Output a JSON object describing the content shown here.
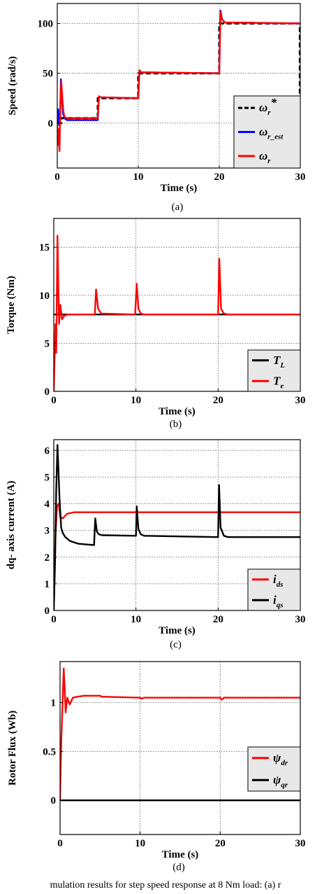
{
  "figure": {
    "caption": "mulation results for step speed response at 8 Nm load: (a) r",
    "line_colors": {
      "red": "#ff0000",
      "blue": "#0000ff",
      "black": "#000000"
    },
    "legend_background": "#e8e8e8"
  },
  "chart_data": [
    {
      "type": "line",
      "panel_label": "(a)",
      "xlabel": "Time (s)",
      "ylabel": "Speed (rad/s)",
      "xlim": [
        0,
        30
      ],
      "ylim": [
        -45,
        120
      ],
      "xticks": [
        0,
        10,
        20,
        30
      ],
      "yticks": [
        0,
        50,
        100
      ],
      "grid": "dotted major grid",
      "legend_position": "bottom-right",
      "series": [
        {
          "name": "ω_r*",
          "legend_main": "ω",
          "legend_sub": "r",
          "legend_sup": "*",
          "color": "#000000",
          "style": "dashed",
          "x": [
            0,
            0.5,
            0.5,
            5,
            5,
            10,
            10,
            20,
            20,
            29.95,
            29.95,
            30
          ],
          "y": [
            0,
            0,
            5,
            5,
            25,
            25,
            50,
            50,
            100,
            100,
            0,
            0
          ]
        },
        {
          "name": "ω_r_est",
          "legend_main": "ω",
          "legend_sub": "r_est",
          "legend_sup": "",
          "color": "#0000ff",
          "style": "solid",
          "x": [
            0,
            0.12,
            0.25,
            0.35,
            0.45,
            0.55,
            0.7,
            0.9,
            1.2,
            5,
            5.15,
            5.35,
            10,
            10.15,
            10.35,
            20,
            20.15,
            20.35,
            20.7,
            30
          ],
          "y": [
            0,
            14,
            -2,
            6,
            44,
            30,
            10,
            5,
            3,
            3,
            27,
            26,
            25,
            53,
            51,
            50,
            113,
            104,
            101,
            100
          ]
        },
        {
          "name": "ω_r",
          "legend_main": "ω",
          "legend_sub": "r",
          "legend_sup": "",
          "color": "#ff0000",
          "style": "solid",
          "x": [
            0,
            0.1,
            0.18,
            0.28,
            0.38,
            0.5,
            0.6,
            0.75,
            0.9,
            1.2,
            5,
            5.15,
            5.35,
            10,
            10.15,
            10.35,
            20,
            20.15,
            20.35,
            20.7,
            30
          ],
          "y": [
            0,
            -22,
            -6,
            -28,
            20,
            42,
            28,
            12,
            6,
            5,
            5,
            27,
            26,
            25,
            53,
            51,
            50,
            112,
            104,
            101,
            100
          ]
        }
      ]
    },
    {
      "type": "line",
      "panel_label": "(b)",
      "xlabel": "Time (s)",
      "ylabel": "Torque (Nm)",
      "xlim": [
        0,
        30
      ],
      "ylim": [
        0,
        18
      ],
      "xticks": [
        0,
        10,
        20,
        30
      ],
      "yticks": [
        0,
        5,
        10,
        15
      ],
      "grid": "dotted major grid",
      "legend_position": "bottom-right",
      "series": [
        {
          "name": "T_L",
          "legend_main": "T",
          "legend_sub": "L",
          "legend_sup": "",
          "color": "#000000",
          "style": "solid",
          "x": [
            0,
            30
          ],
          "y": [
            8,
            8
          ]
        },
        {
          "name": "T_e",
          "legend_main": "T",
          "legend_sub": "e",
          "legend_sup": "",
          "color": "#ff0000",
          "style": "solid",
          "x": [
            0,
            0.2,
            0.3,
            0.45,
            0.55,
            0.65,
            0.8,
            1.0,
            1.3,
            1.8,
            5,
            5.15,
            5.4,
            5.8,
            9.9,
            10.1,
            10.3,
            10.6,
            11,
            20,
            20.15,
            20.35,
            20.7,
            21.2,
            30
          ],
          "y": [
            0,
            7,
            4,
            16.2,
            11,
            7,
            9,
            7.5,
            7.9,
            8,
            8,
            10.6,
            8.6,
            8.1,
            8,
            11.2,
            8.6,
            8.1,
            8,
            8,
            13.8,
            8.6,
            8.1,
            8,
            8
          ]
        }
      ]
    },
    {
      "type": "line",
      "panel_label": "(c)",
      "xlabel": "Time (s)",
      "ylabel": "dq- axis current (A)",
      "xlim": [
        0,
        30
      ],
      "ylim": [
        0,
        6.4
      ],
      "xticks": [
        0,
        10,
        20,
        30
      ],
      "yticks": [
        0,
        1,
        2,
        3,
        4,
        5,
        6
      ],
      "grid": "dotted major grid",
      "legend_position": "bottom-right",
      "series": [
        {
          "name": "i_ds",
          "legend_main": "i",
          "legend_sub": "ds",
          "legend_sup": "",
          "color": "#ff0000",
          "style": "solid",
          "x": [
            0,
            0.2,
            0.4,
            0.6,
            0.8,
            1.1,
            1.6,
            2.5,
            30
          ],
          "y": [
            0,
            2.8,
            3.9,
            4.0,
            3.5,
            3.45,
            3.62,
            3.68,
            3.68
          ]
        },
        {
          "name": "i_qs",
          "legend_main": "i",
          "legend_sub": "qs",
          "legend_sup": "",
          "color": "#000000",
          "style": "solid",
          "x": [
            0,
            0.15,
            0.3,
            0.45,
            0.55,
            0.7,
            0.9,
            1.1,
            1.4,
            2,
            3,
            4.9,
            5.05,
            5.25,
            5.5,
            5.9,
            10,
            10.1,
            10.3,
            10.6,
            11,
            20,
            20.12,
            20.3,
            20.7,
            21.2,
            30
          ],
          "y": [
            0,
            1.8,
            4.5,
            6.2,
            5.4,
            4.2,
            3.1,
            2.9,
            2.75,
            2.6,
            2.5,
            2.45,
            3.45,
            2.95,
            2.85,
            2.82,
            2.8,
            3.9,
            3.05,
            2.85,
            2.8,
            2.75,
            4.7,
            3.1,
            2.8,
            2.75,
            2.75
          ]
        }
      ]
    },
    {
      "type": "line",
      "panel_label": "(d)",
      "xlabel": "Time (s)",
      "ylabel": "Rotor Flux (Wb)",
      "xlim": [
        0,
        30
      ],
      "ylim": [
        -0.35,
        1.42
      ],
      "xticks": [
        0,
        10,
        20,
        30
      ],
      "yticks": [
        0,
        0.5,
        1
      ],
      "ytick_labels": [
        "0",
        "0.5",
        "1"
      ],
      "grid": "dotted major grid",
      "legend_position": "right",
      "series": [
        {
          "name": "ψ_dr",
          "legend_main": "ψ",
          "legend_sub": "dr",
          "legend_sup": "",
          "color": "#ff0000",
          "style": "solid",
          "x": [
            0,
            0.15,
            0.3,
            0.45,
            0.55,
            0.7,
            0.9,
            1.2,
            1.6,
            2.2,
            3,
            5,
            5.2,
            10,
            10.15,
            10.5,
            20,
            20.15,
            20.5,
            30
          ],
          "y": [
            0,
            0.6,
            0.95,
            1.35,
            1.2,
            0.9,
            1.05,
            0.98,
            1.05,
            1.06,
            1.07,
            1.07,
            1.06,
            1.05,
            1.04,
            1.05,
            1.05,
            1.03,
            1.05,
            1.05
          ]
        },
        {
          "name": "ψ_qr",
          "legend_main": "ψ",
          "legend_sub": "qr",
          "legend_sup": "",
          "color": "#000000",
          "style": "solid",
          "x": [
            0,
            30
          ],
          "y": [
            0,
            0
          ]
        }
      ]
    }
  ]
}
